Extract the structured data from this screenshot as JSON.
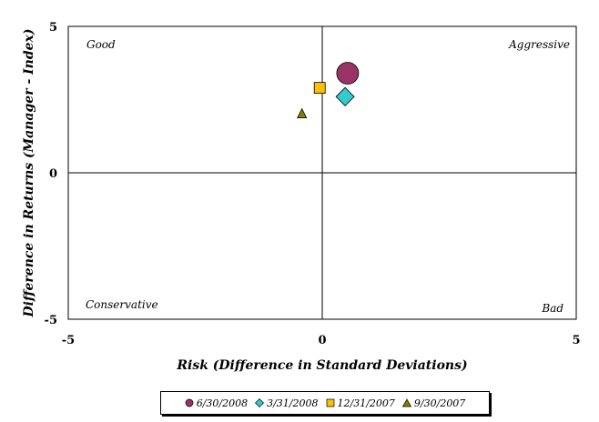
{
  "chart_data": {
    "type": "scatter",
    "title": "",
    "xlabel": "Risk (Difference in Standard Deviations)",
    "ylabel": "Difference in Returns (Manager - Index)",
    "xlim": [
      -5,
      5
    ],
    "ylim": [
      -5,
      5
    ],
    "xticks": [
      "-5",
      "0",
      "5"
    ],
    "yticks": [
      "5",
      "0",
      "-5"
    ],
    "grid": false,
    "legend_position": "bottom",
    "quadrant_labels": {
      "top_left": "Good",
      "top_right": "Aggressive",
      "bottom_left": "Conservative",
      "bottom_right": "Bad"
    },
    "series": [
      {
        "name": "6/30/2008",
        "marker": "circle",
        "color": "#993366",
        "x": 0.5,
        "y": 3.4
      },
      {
        "name": "3/31/2008",
        "marker": "diamond",
        "color": "#33CCCC",
        "x": 0.45,
        "y": 2.6
      },
      {
        "name": "12/31/2007",
        "marker": "square",
        "color": "#FFC000",
        "x": -0.05,
        "y": 2.9
      },
      {
        "name": "9/30/2007",
        "marker": "triangle",
        "color": "#808000",
        "x": -0.4,
        "y": 2.0
      }
    ]
  }
}
